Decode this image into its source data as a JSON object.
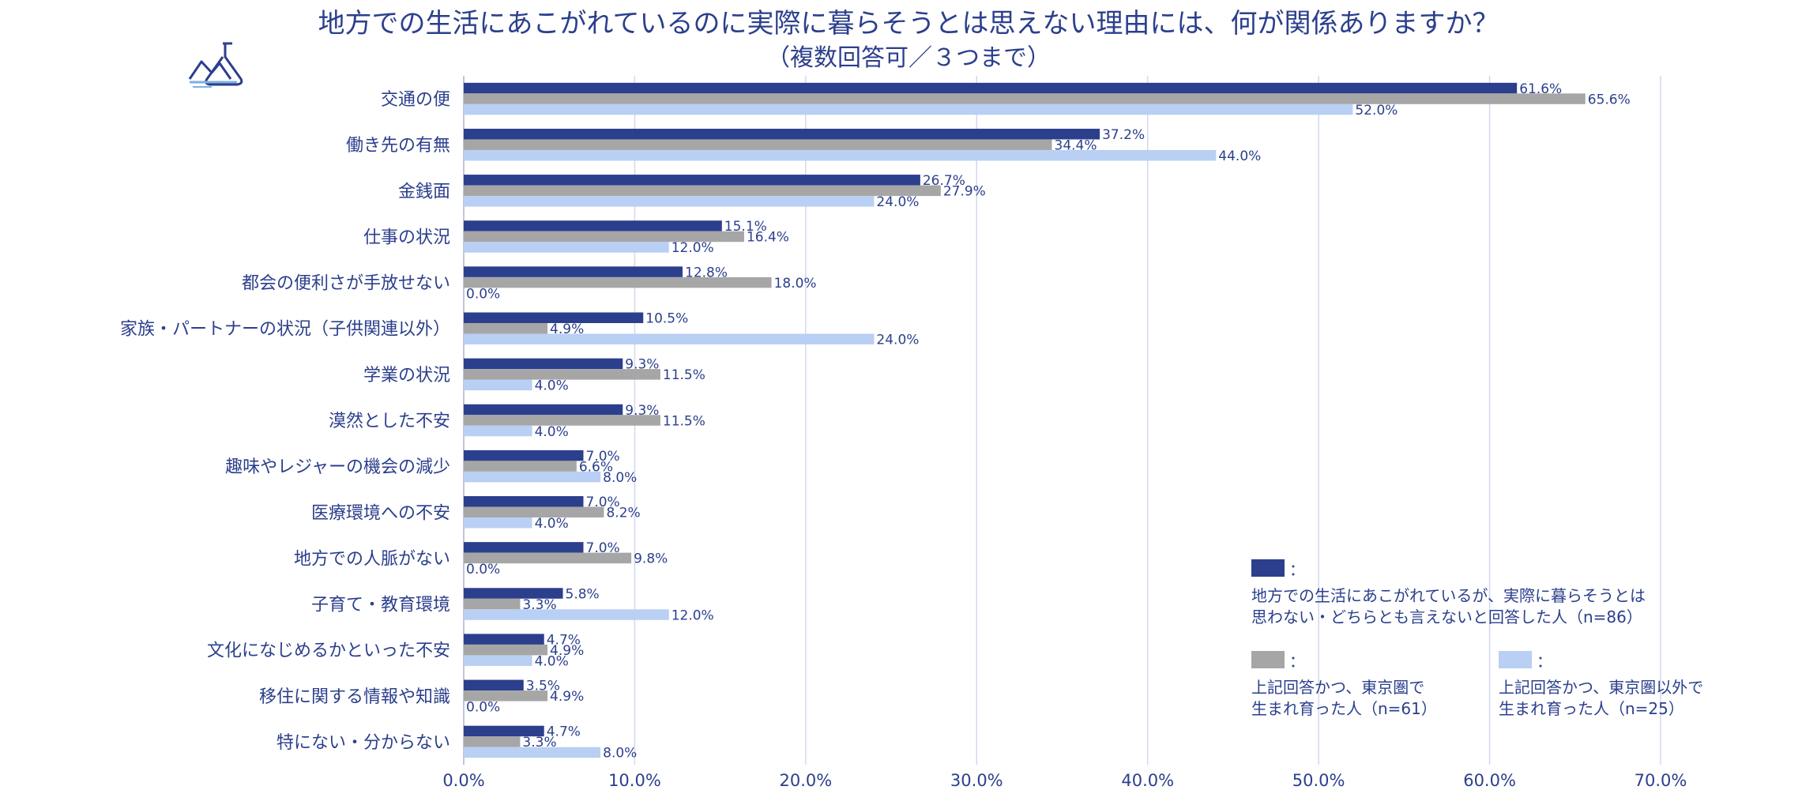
{
  "title": "地方での生活にあこがれているのに実際に暮らそうとは思えない理由には、何が関係ありますか？",
  "subtitle": "（複数回答可／３つまで）",
  "icon": "flask-landscape-icon",
  "colors": {
    "series1": "#2b3f8c",
    "series2": "#a6a6a6",
    "series3": "#b9cff3",
    "text": "#2b3f8c",
    "grid": "#d4d8ef"
  },
  "legend": {
    "colon": "：",
    "series1_text": "地方での生活にあこがれているが、実際に暮らそうとは\n思わない・どちらとも言えないと回答した人（n=86）",
    "series2_text": "上記回答かつ、東京圏で\n生まれ育った人（n=61）",
    "series3_text": "上記回答かつ、東京圏以外で\n生まれ育った人（n=25）"
  },
  "chart_data": {
    "type": "bar",
    "orientation": "horizontal",
    "categories": [
      "交通の便",
      "働き先の有無",
      "金銭面",
      "仕事の状況",
      "都会の便利さが手放せない",
      "家族・パートナーの状況（子供関連以外）",
      "学業の状況",
      "漠然とした不安",
      "趣味やレジャーの機会の減少",
      "医療環境への不安",
      "地方での人脈がない",
      "子育て・教育環境",
      "文化になじめるかといった不安",
      "移住に関する情報や知識",
      "特にない・分からない"
    ],
    "series": [
      {
        "name": "地方での生活にあこがれているが、実際に暮らそうとは思わない・どちらとも言えないと回答した人（n=86）",
        "values": [
          61.6,
          37.2,
          26.7,
          15.1,
          12.8,
          10.5,
          9.3,
          9.3,
          7.0,
          7.0,
          7.0,
          5.8,
          4.7,
          3.5,
          4.7
        ]
      },
      {
        "name": "上記回答かつ、東京圏で生まれ育った人（n=61）",
        "values": [
          65.6,
          34.4,
          27.9,
          16.4,
          18.0,
          4.9,
          11.5,
          11.5,
          6.6,
          8.2,
          9.8,
          3.3,
          4.9,
          4.9,
          3.3
        ]
      },
      {
        "name": "上記回答かつ、東京圏以外で生まれ育った人（n=25）",
        "values": [
          52.0,
          44.0,
          24.0,
          12.0,
          0.0,
          24.0,
          4.0,
          4.0,
          8.0,
          4.0,
          0.0,
          12.0,
          4.0,
          0.0,
          8.0
        ]
      }
    ],
    "xlim": [
      0,
      70
    ],
    "xticks": [
      0,
      10,
      20,
      30,
      40,
      50,
      60,
      70
    ],
    "xtick_labels": [
      "0.0%",
      "10.0%",
      "20.0%",
      "30.0%",
      "40.0%",
      "50.0%",
      "60.0%",
      "70.0%"
    ],
    "value_suffix": "%",
    "grid": true,
    "legend_position": "bottom-right"
  }
}
